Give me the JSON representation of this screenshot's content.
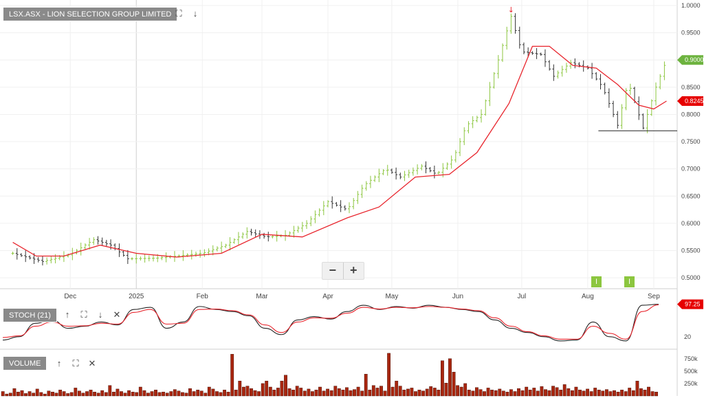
{
  "panels": {
    "price": {
      "label": "LSX.ASX - LION SELECTION GROUP LIMITED"
    },
    "stoch": {
      "label": "STOCH (21)"
    },
    "volume": {
      "label": "VOLUME"
    }
  },
  "zoom": {
    "minus": "−",
    "plus": "+"
  },
  "icons": {
    "expand": "⛶",
    "down": "↓",
    "up": "↑",
    "close": "✕"
  },
  "events": [
    {
      "label": "I",
      "date": "2025-08-06"
    },
    {
      "label": "I",
      "date": "2025-08-20"
    }
  ],
  "colors": {
    "up": "#8cc63f",
    "down": "#333333",
    "ma": "#e8242c",
    "stochK": "#222222",
    "stochD": "#e8242c",
    "volume": "#a8260f",
    "current": "#6db33f",
    "maTag": "#e60000"
  },
  "chart_data": [
    {
      "type": "ohlc",
      "panel": "price",
      "title": "LSX.ASX - LION SELECTION GROUP LIMITED",
      "x_ticks": [
        "Dec",
        "2025",
        "Feb",
        "Mar",
        "Apr",
        "May",
        "Jun",
        "Jul",
        "Aug",
        "Sep"
      ],
      "y_ticks": [
        "1.0000",
        "0.9500",
        "0.9000",
        "0.8500",
        "0.8000",
        "0.7500",
        "0.7000",
        "0.6500",
        "0.6000",
        "0.5500",
        "0.5000"
      ],
      "ylim": [
        0.48,
        1.005
      ],
      "current_price": "0.9000",
      "moving_average_value": "0.8245",
      "support_level": 0.77,
      "series": [
        {
          "name": "price",
          "points": [
            [
              "2024-11-04",
              0.545
            ],
            [
              "2024-11-18",
              0.53
            ],
            [
              "2024-12-01",
              0.543
            ],
            [
              "2024-12-12",
              0.57
            ],
            [
              "2024-12-20",
              0.56
            ],
            [
              "2024-12-28",
              0.535
            ],
            [
              "2025-01-10",
              0.536
            ],
            [
              "2025-01-20",
              0.54
            ],
            [
              "2025-02-01",
              0.545
            ],
            [
              "2025-02-12",
              0.56
            ],
            [
              "2025-02-22",
              0.585
            ],
            [
              "2025-03-03",
              0.575
            ],
            [
              "2025-03-12",
              0.578
            ],
            [
              "2025-03-22",
              0.6
            ],
            [
              "2025-04-01",
              0.64
            ],
            [
              "2025-04-10",
              0.625
            ],
            [
              "2025-04-18",
              0.67
            ],
            [
              "2025-04-28",
              0.7
            ],
            [
              "2025-05-05",
              0.685
            ],
            [
              "2025-05-15",
              0.705
            ],
            [
              "2025-05-22",
              0.69
            ],
            [
              "2025-05-30",
              0.72
            ],
            [
              "2025-06-05",
              0.78
            ],
            [
              "2025-06-12",
              0.8
            ],
            [
              "2025-06-20",
              0.9
            ],
            [
              "2025-06-26",
              0.98
            ],
            [
              "2025-07-01",
              0.915
            ],
            [
              "2025-07-10",
              0.91
            ],
            [
              "2025-07-16",
              0.87
            ],
            [
              "2025-07-24",
              0.895
            ],
            [
              "2025-08-01",
              0.885
            ],
            [
              "2025-08-08",
              0.85
            ],
            [
              "2025-08-15",
              0.78
            ],
            [
              "2025-08-20",
              0.86
            ],
            [
              "2025-08-27",
              0.775
            ],
            [
              "2025-09-02",
              0.85
            ],
            [
              "2025-09-07",
              0.9
            ]
          ]
        },
        {
          "name": "ma",
          "points": [
            [
              "2024-11-04",
              0.565
            ],
            [
              "2024-11-15",
              0.54
            ],
            [
              "2024-11-28",
              0.54
            ],
            [
              "2024-12-15",
              0.56
            ],
            [
              "2025-01-01",
              0.545
            ],
            [
              "2025-01-20",
              0.538
            ],
            [
              "2025-02-10",
              0.545
            ],
            [
              "2025-03-01",
              0.58
            ],
            [
              "2025-03-20",
              0.575
            ],
            [
              "2025-04-10",
              0.61
            ],
            [
              "2025-04-25",
              0.63
            ],
            [
              "2025-05-12",
              0.685
            ],
            [
              "2025-05-28",
              0.69
            ],
            [
              "2025-06-10",
              0.73
            ],
            [
              "2025-06-25",
              0.82
            ],
            [
              "2025-07-06",
              0.925
            ],
            [
              "2025-07-14",
              0.925
            ],
            [
              "2025-07-25",
              0.89
            ],
            [
              "2025-08-05",
              0.885
            ],
            [
              "2025-08-15",
              0.855
            ],
            [
              "2025-08-25",
              0.817
            ],
            [
              "2025-09-01",
              0.81
            ],
            [
              "2025-09-07",
              0.8245
            ]
          ]
        }
      ]
    },
    {
      "type": "line",
      "panel": "stoch",
      "title": "STOCH (21)",
      "y_ticks": [
        "20"
      ],
      "ylim": [
        0,
        100
      ],
      "last_value": "97.25",
      "series": [
        {
          "name": "%K",
          "values": [
            12,
            20,
            52,
            60,
            40,
            45,
            55,
            48,
            85,
            90,
            40,
            55,
            92,
            85,
            80,
            70,
            40,
            25,
            60,
            68,
            62,
            80,
            95,
            85,
            92,
            88,
            95,
            90,
            85,
            80,
            60,
            40,
            30,
            20,
            10,
            12,
            55,
            20,
            10,
            95,
            97.25
          ]
        },
        {
          "name": "%D",
          "values": [
            18,
            22,
            45,
            55,
            45,
            46,
            52,
            50,
            78,
            85,
            50,
            52,
            85,
            86,
            82,
            72,
            48,
            30,
            55,
            65,
            64,
            76,
            90,
            86,
            90,
            89,
            92,
            90,
            86,
            82,
            65,
            45,
            32,
            22,
            14,
            14,
            45,
            28,
            14,
            80,
            96
          ]
        }
      ]
    },
    {
      "type": "bar",
      "panel": "volume",
      "title": "VOLUME",
      "y_ticks": [
        "750k",
        "500k",
        "250k"
      ],
      "ylim": [
        0,
        900000
      ],
      "values": [
        90000,
        40000,
        60000,
        150000,
        80000,
        110000,
        50000,
        90000,
        60000,
        140000,
        70000,
        40000,
        100000,
        80000,
        60000,
        120000,
        90000,
        50000,
        70000,
        160000,
        100000,
        60000,
        90000,
        120000,
        80000,
        60000,
        110000,
        70000,
        210000,
        80000,
        140000,
        90000,
        60000,
        110000,
        80000,
        70000,
        180000,
        110000,
        60000,
        90000,
        120000,
        70000,
        80000,
        60000,
        90000,
        130000,
        100000,
        70000,
        60000,
        150000,
        90000,
        120000,
        100000,
        60000,
        180000,
        140000,
        90000,
        70000,
        120000,
        80000,
        840000,
        120000,
        300000,
        180000,
        200000,
        150000,
        110000,
        90000,
        250000,
        300000,
        180000,
        120000,
        160000,
        300000,
        420000,
        150000,
        120000,
        200000,
        160000,
        100000,
        140000,
        90000,
        120000,
        180000,
        100000,
        140000,
        110000,
        200000,
        150000,
        120000,
        170000,
        110000,
        130000,
        180000,
        100000,
        440000,
        120000,
        210000,
        160000,
        200000,
        100000,
        860000,
        180000,
        300000,
        200000,
        120000,
        140000,
        160000,
        90000,
        120000,
        100000,
        140000,
        190000,
        160000,
        120000,
        710000,
        260000,
        750000,
        480000,
        210000,
        180000,
        250000,
        120000,
        100000,
        170000,
        130000,
        90000,
        160000,
        120000,
        110000,
        140000,
        100000,
        80000,
        130000,
        90000,
        150000,
        110000,
        180000,
        120000,
        160000,
        100000,
        190000,
        130000,
        110000,
        200000,
        170000,
        120000,
        230000,
        150000,
        110000,
        180000,
        120000,
        100000,
        140000,
        90000,
        160000,
        120000,
        100000,
        130000,
        90000,
        110000,
        80000,
        120000,
        90000,
        160000,
        110000,
        300000,
        150000,
        120000,
        180000,
        90000,
        80000
      ]
    }
  ]
}
